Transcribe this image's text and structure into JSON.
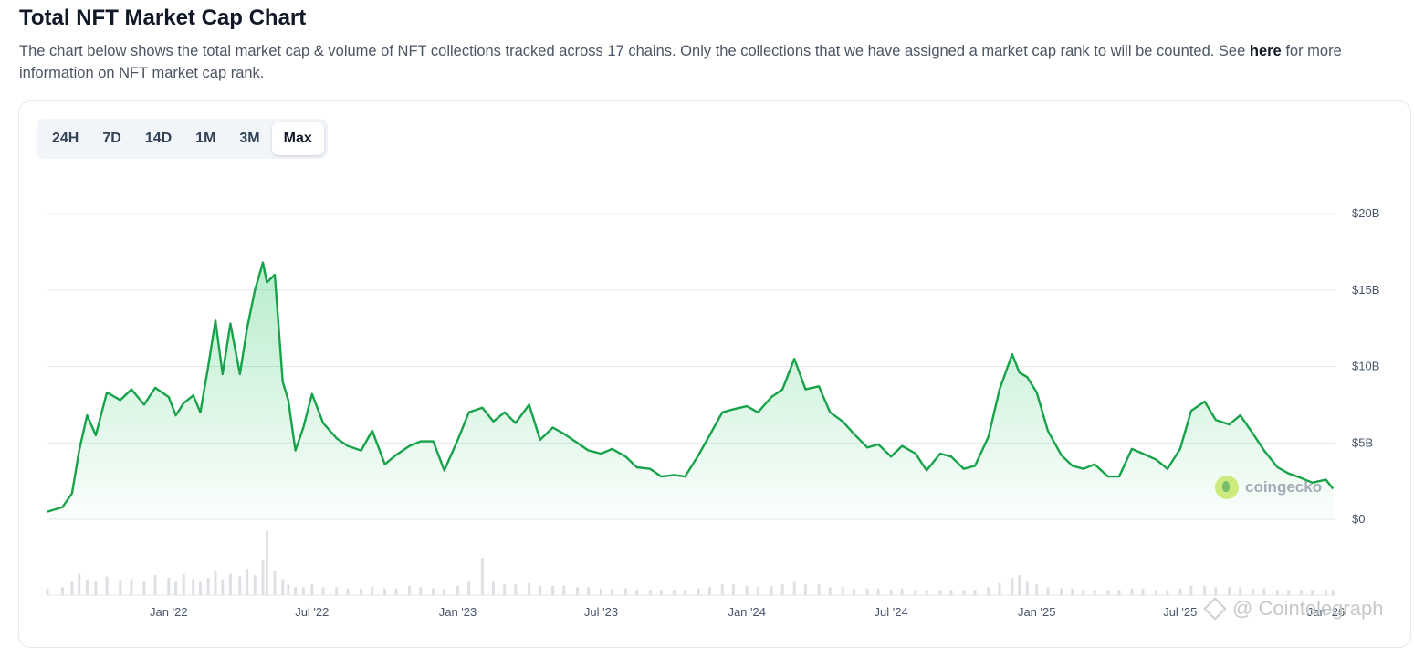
{
  "header": {
    "title": "Total NFT Market Cap Chart",
    "desc_before": "The chart below shows the total market cap & volume of NFT collections tracked across 17 chains. Only the collections that we have assigned a market cap rank to will be counted. See ",
    "desc_link": "here",
    "desc_after": " for more information on NFT market cap rank."
  },
  "tabs": [
    {
      "label": "24H",
      "active": false
    },
    {
      "label": "7D",
      "active": false
    },
    {
      "label": "14D",
      "active": false
    },
    {
      "label": "1M",
      "active": false
    },
    {
      "label": "3M",
      "active": false
    },
    {
      "label": "Max",
      "active": true
    }
  ],
  "watermarks": {
    "coingecko": "coingecko",
    "cointelegraph": "@ Cointelegraph"
  },
  "colors": {
    "line": "#16a34a",
    "area_top": "#86efac",
    "grid": "#e5e7eb",
    "axis_text": "#475569",
    "volume": "#d1d5db"
  },
  "chart_data": {
    "type": "area",
    "title": "",
    "xlabel": "",
    "ylabel": "",
    "x_ticks": [
      "Jan '22",
      "Jul '22",
      "Jan '23",
      "Jul '23",
      "Jan '24",
      "Jul '24",
      "Jan '25",
      "Jul '25",
      "Jan '26"
    ],
    "y_ticks": [
      "$20B",
      "$15B",
      "$10B",
      "$5B",
      "$0"
    ],
    "ylim": [
      0,
      20
    ],
    "y_unit": "$B",
    "grid": true,
    "series": [
      {
        "x": [
          "2021-08-01",
          "2021-08-20",
          "2021-09-01",
          "2021-09-10",
          "2021-09-20",
          "2021-10-01",
          "2021-10-15",
          "2021-11-01",
          "2021-11-15",
          "2021-12-01",
          "2021-12-15",
          "2022-01-01",
          "2022-01-10",
          "2022-01-20",
          "2022-02-01",
          "2022-02-10",
          "2022-02-20",
          "2022-03-01",
          "2022-03-10",
          "2022-03-20",
          "2022-04-01",
          "2022-04-10",
          "2022-04-20",
          "2022-04-30",
          "2022-05-05",
          "2022-05-15",
          "2022-05-25",
          "2022-06-01",
          "2022-06-10",
          "2022-06-20",
          "2022-07-01",
          "2022-07-15",
          "2022-08-01",
          "2022-08-15",
          "2022-09-01",
          "2022-09-15",
          "2022-10-01",
          "2022-10-15",
          "2022-11-01",
          "2022-11-15",
          "2022-12-01",
          "2022-12-15",
          "2023-01-01",
          "2023-01-15",
          "2023-02-01",
          "2023-02-15",
          "2023-03-01",
          "2023-03-15",
          "2023-04-01",
          "2023-04-15",
          "2023-05-01",
          "2023-05-15",
          "2023-06-01",
          "2023-06-15",
          "2023-07-01",
          "2023-07-15",
          "2023-08-01",
          "2023-08-15",
          "2023-09-01",
          "2023-09-15",
          "2023-10-01",
          "2023-10-15",
          "2023-11-01",
          "2023-11-15",
          "2023-12-01",
          "2023-12-15",
          "2024-01-01",
          "2024-01-15",
          "2024-02-01",
          "2024-02-15",
          "2024-03-01",
          "2024-03-15",
          "2024-04-01",
          "2024-04-15",
          "2024-05-01",
          "2024-05-15",
          "2024-06-01",
          "2024-06-15",
          "2024-07-01",
          "2024-07-15",
          "2024-08-01",
          "2024-08-15",
          "2024-09-01",
          "2024-09-15",
          "2024-10-01",
          "2024-10-15",
          "2024-11-01",
          "2024-11-15",
          "2024-12-01",
          "2024-12-10",
          "2024-12-20",
          "2025-01-01",
          "2025-01-15",
          "2025-02-01",
          "2025-02-15",
          "2025-03-01",
          "2025-03-15",
          "2025-04-01",
          "2025-04-15",
          "2025-05-01",
          "2025-05-15",
          "2025-06-01",
          "2025-06-15",
          "2025-07-01",
          "2025-07-15",
          "2025-08-01",
          "2025-08-15",
          "2025-09-01",
          "2025-09-15",
          "2025-10-01",
          "2025-10-15",
          "2025-11-01",
          "2025-11-15",
          "2025-12-01",
          "2025-12-15",
          "2026-01-01",
          "2026-01-10"
        ],
        "values": [
          0.5,
          0.8,
          1.7,
          4.5,
          6.8,
          5.5,
          8.3,
          7.8,
          8.5,
          7.5,
          8.6,
          8.0,
          6.8,
          7.6,
          8.1,
          7.0,
          10.0,
          13.0,
          9.5,
          12.8,
          9.5,
          12.5,
          15.0,
          16.8,
          15.5,
          16.0,
          9.0,
          7.8,
          4.5,
          6.0,
          8.2,
          6.3,
          5.3,
          4.8,
          4.5,
          5.8,
          3.6,
          4.2,
          4.8,
          5.1,
          5.1,
          3.2,
          5.2,
          7.0,
          7.3,
          6.4,
          7.0,
          6.3,
          7.5,
          5.2,
          6.0,
          5.6,
          5.0,
          4.5,
          4.3,
          4.6,
          4.1,
          3.4,
          3.3,
          2.8,
          2.9,
          2.8,
          4.2,
          5.5,
          7.0,
          7.2,
          7.4,
          7.0,
          8.0,
          8.5,
          10.5,
          8.5,
          8.7,
          7.0,
          6.4,
          5.6,
          4.7,
          4.9,
          4.1,
          4.8,
          4.3,
          3.2,
          4.3,
          4.1,
          3.3,
          3.5,
          5.4,
          8.5,
          10.8,
          9.6,
          9.3,
          8.3,
          5.8,
          4.2,
          3.5,
          3.3,
          3.6,
          2.8,
          2.8,
          4.6,
          4.3,
          3.9,
          3.3,
          4.6,
          7.1,
          7.7,
          6.5,
          6.2,
          6.8,
          5.6,
          4.5,
          3.4,
          3.0,
          2.7,
          2.4,
          2.6,
          2.0
        ],
        "volume": [
          0.5,
          0.6,
          1.0,
          1.6,
          1.2,
          1.0,
          1.4,
          1.1,
          1.2,
          1.0,
          1.5,
          1.3,
          1.0,
          1.6,
          1.2,
          1.0,
          1.3,
          1.8,
          1.2,
          1.6,
          1.4,
          2.0,
          1.5,
          2.6,
          4.8,
          1.8,
          1.2,
          0.8,
          0.6,
          0.6,
          0.8,
          0.6,
          0.6,
          0.5,
          0.5,
          0.6,
          0.5,
          0.5,
          0.7,
          0.6,
          0.5,
          0.5,
          0.7,
          1.0,
          2.8,
          1.0,
          0.8,
          0.8,
          0.9,
          0.7,
          0.7,
          0.7,
          0.6,
          0.6,
          0.5,
          0.5,
          0.5,
          0.4,
          0.4,
          0.4,
          0.4,
          0.4,
          0.5,
          0.6,
          0.8,
          0.8,
          0.7,
          0.6,
          0.7,
          0.8,
          1.0,
          0.8,
          0.8,
          0.6,
          0.6,
          0.5,
          0.5,
          0.5,
          0.4,
          0.5,
          0.4,
          0.4,
          0.4,
          0.4,
          0.4,
          0.4,
          0.6,
          0.9,
          1.3,
          1.5,
          1.0,
          0.8,
          0.6,
          0.5,
          0.5,
          0.4,
          0.4,
          0.4,
          0.4,
          0.5,
          0.5,
          0.4,
          0.4,
          0.5,
          0.7,
          0.7,
          0.6,
          0.6,
          0.6,
          0.5,
          0.5,
          0.4,
          0.4,
          0.4,
          0.4,
          0.4,
          0.4
        ]
      }
    ]
  }
}
